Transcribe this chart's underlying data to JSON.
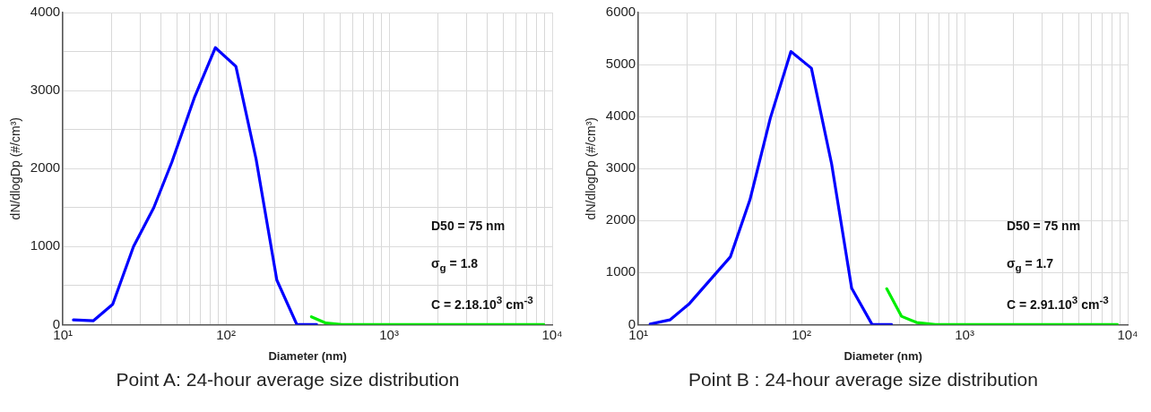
{
  "chart_data": [
    {
      "type": "line",
      "title": "Point A:  24-hour average size distribution",
      "xlabel": "Diameter (nm)",
      "ylabel": "dN/dlogDp (#/cm³)",
      "series": [
        {
          "color": "#0000ff",
          "x": [
            11.6,
            15.4,
            20.2,
            27.1,
            36.1,
            46.5,
            64.3,
            86.1,
            115,
            153,
            205,
            272,
            360
          ],
          "values": [
            60,
            50,
            260,
            1000,
            1500,
            2080,
            2920,
            3550,
            3310,
            2120,
            570,
            0,
            0
          ]
        },
        {
          "color": "#00ee00",
          "x": [
            334,
            410,
            513,
            1000,
            3000,
            8900
          ],
          "values": [
            100,
            20,
            0,
            0,
            0,
            0
          ]
        }
      ],
      "log": "x",
      "xlim": [
        10,
        10000
      ],
      "xticks": [
        {
          "value": 10,
          "label": "10¹"
        },
        {
          "value": 20,
          "label": null
        },
        {
          "value": 30,
          "label": null
        },
        {
          "value": 40,
          "label": null
        },
        {
          "value": 50,
          "label": null
        },
        {
          "value": 60,
          "label": null
        },
        {
          "value": 70,
          "label": null
        },
        {
          "value": 80,
          "label": null
        },
        {
          "value": 90,
          "label": null
        },
        {
          "value": 100,
          "label": "10²"
        },
        {
          "value": 200,
          "label": null
        },
        {
          "value": 300,
          "label": null
        },
        {
          "value": 400,
          "label": null
        },
        {
          "value": 500,
          "label": null
        },
        {
          "value": 600,
          "label": null
        },
        {
          "value": 700,
          "label": null
        },
        {
          "value": 800,
          "label": null
        },
        {
          "value": 900,
          "label": null
        },
        {
          "value": 1000,
          "label": "10³"
        },
        {
          "value": 2000,
          "label": null
        },
        {
          "value": 3000,
          "label": null
        },
        {
          "value": 4000,
          "label": null
        },
        {
          "value": 5000,
          "label": null
        },
        {
          "value": 6000,
          "label": null
        },
        {
          "value": 7000,
          "label": null
        },
        {
          "value": 8000,
          "label": null
        },
        {
          "value": 9000,
          "label": null
        },
        {
          "value": 10000,
          "label": "10⁴"
        }
      ],
      "ylim": [
        0,
        4000
      ],
      "yticks": [
        0,
        {
          "value": 500,
          "label": null
        },
        1000,
        {
          "value": 1500,
          "label": null
        },
        2000,
        {
          "value": 2500,
          "label": null
        },
        3000,
        {
          "value": 3500,
          "label": null
        },
        4000
      ],
      "grid": true,
      "line_style": "solid",
      "marker": "none",
      "annotations": [
        "D50 = 75 nm",
        "σ$_{g}$ = 1.8",
        "C = 2.18.10$^{3}$ cm$^{-3}$"
      ]
    },
    {
      "type": "line",
      "title": "Point B : 24-hour average size distribution",
      "xlabel": "Diameter (nm)",
      "ylabel": "dN/dlogDp (#/cm³)",
      "series": [
        {
          "color": "#0000ff",
          "x": [
            11.8,
            15.6,
            20.5,
            36.6,
            48.3,
            64.4,
            86.1,
            115,
            153,
            203,
            271,
            357
          ],
          "values": [
            10,
            90,
            400,
            1300,
            2400,
            3970,
            5250,
            4930,
            3090,
            700,
            0,
            0
          ]
        },
        {
          "color": "#00ee00",
          "x": [
            333,
            410,
            508,
            661,
            1000,
            3000,
            8650
          ],
          "values": [
            690,
            160,
            40,
            0,
            0,
            0,
            0
          ]
        }
      ],
      "log": "x",
      "xlim": [
        10,
        10000
      ],
      "xticks": [
        {
          "value": 10,
          "label": "10¹"
        },
        {
          "value": 20,
          "label": null
        },
        {
          "value": 30,
          "label": null
        },
        {
          "value": 40,
          "label": null
        },
        {
          "value": 50,
          "label": null
        },
        {
          "value": 60,
          "label": null
        },
        {
          "value": 70,
          "label": null
        },
        {
          "value": 80,
          "label": null
        },
        {
          "value": 90,
          "label": null
        },
        {
          "value": 100,
          "label": "10²"
        },
        {
          "value": 200,
          "label": null
        },
        {
          "value": 300,
          "label": null
        },
        {
          "value": 400,
          "label": null
        },
        {
          "value": 500,
          "label": null
        },
        {
          "value": 600,
          "label": null
        },
        {
          "value": 700,
          "label": null
        },
        {
          "value": 800,
          "label": null
        },
        {
          "value": 900,
          "label": null
        },
        {
          "value": 1000,
          "label": "10³"
        },
        {
          "value": 2000,
          "label": null
        },
        {
          "value": 3000,
          "label": null
        },
        {
          "value": 4000,
          "label": null
        },
        {
          "value": 5000,
          "label": null
        },
        {
          "value": 6000,
          "label": null
        },
        {
          "value": 7000,
          "label": null
        },
        {
          "value": 8000,
          "label": null
        },
        {
          "value": 9000,
          "label": null
        },
        {
          "value": 10000,
          "label": "10⁴"
        }
      ],
      "ylim": [
        0,
        6000
      ],
      "yticks": [
        0,
        1000,
        2000,
        3000,
        4000,
        5000,
        6000
      ],
      "grid": true,
      "line_style": "solid",
      "marker": "none",
      "annotations": [
        "D50 = 75 nm",
        "σ$_{g}$ = 1.7",
        "C = 2.91.10$^{3}$ cm$^{-3}$"
      ]
    }
  ]
}
